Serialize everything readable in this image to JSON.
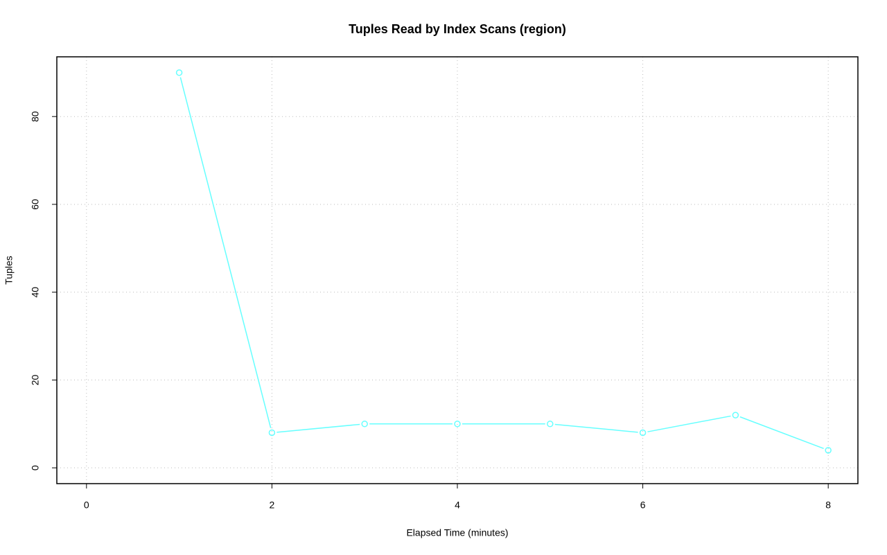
{
  "chart_data": {
    "type": "line",
    "title": "Tuples Read by Index Scans (region)",
    "x_label": "Elapsed Time (minutes)",
    "y_label": "Tuples",
    "x": [
      1,
      2,
      3,
      4,
      5,
      6,
      7,
      8
    ],
    "series": [
      {
        "color": "#66ffff",
        "values": [
          90,
          8,
          10,
          10,
          10,
          8,
          12,
          4
        ]
      }
    ],
    "xlim": [
      -0.32,
      8.32
    ],
    "xticks": [
      0,
      2,
      4,
      6,
      8
    ],
    "ylim": [
      -3.6,
      93.6
    ],
    "yticks": [
      0,
      20,
      40,
      60,
      80
    ],
    "grid": true
  }
}
